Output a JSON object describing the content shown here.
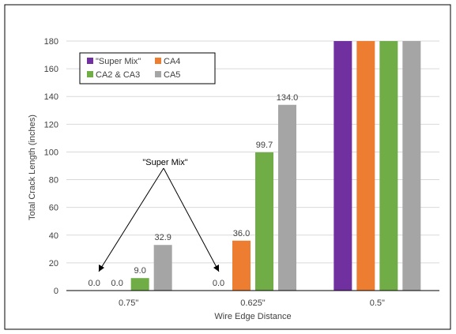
{
  "chart_data": {
    "type": "bar",
    "xlabel": "Wire Edge Distance",
    "ylabel": "Total Crack Length (inches)",
    "ylim": [
      0,
      180
    ],
    "yticks": [
      0,
      20,
      40,
      60,
      80,
      100,
      120,
      140,
      160,
      180
    ],
    "grid": true,
    "legend_position": "top-left",
    "categories": [
      "0.75\"",
      "0.625\"",
      "0.5\""
    ],
    "series": [
      {
        "name": "\"Super Mix\"",
        "color": "#7030a0",
        "values": [
          0.0,
          0.0,
          180
        ],
        "labels": [
          "0.0",
          "0.0",
          ""
        ]
      },
      {
        "name": "CA4",
        "color": "#ed7d31",
        "values": [
          0.0,
          36.0,
          180
        ],
        "labels": [
          "0.0",
          "36.0",
          ""
        ]
      },
      {
        "name": "CA2 & CA3",
        "color": "#70ad47",
        "values": [
          9.0,
          99.7,
          180
        ],
        "labels": [
          "9.0",
          "99.7",
          ""
        ]
      },
      {
        "name": "CA5",
        "color": "#a5a5a5",
        "values": [
          32.9,
          134.0,
          180
        ],
        "labels": [
          "32.9",
          "134.0",
          ""
        ]
      }
    ],
    "annotation": {
      "text": "\"Super Mix\""
    }
  }
}
